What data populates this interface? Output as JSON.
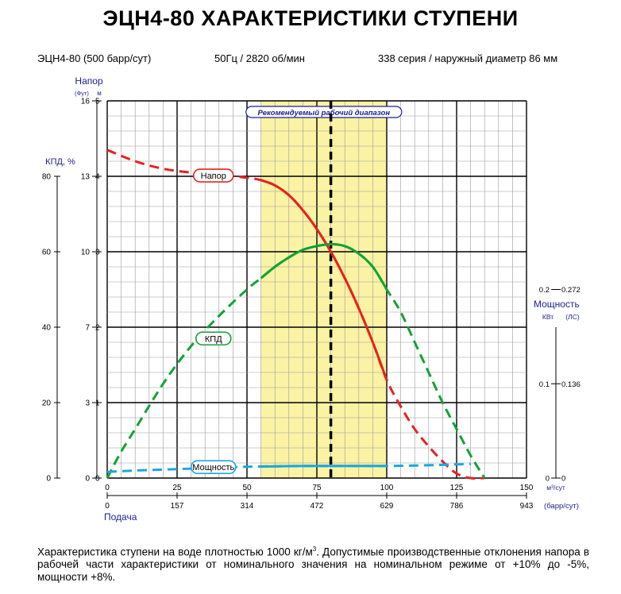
{
  "header": {
    "title": "ЭЦН4-80 ХАРАКТЕРИСТИКИ СТУПЕНИ",
    "model": "ЭЦН4-80 (500 барр/сут)",
    "speed": "50Гц   /   2820 об/мин",
    "series": "338 серия  /  наружный диаметр 86 мм"
  },
  "footnote": {
    "line1_a": "Характеристика ступени на воде плотностью 1000 кг/м",
    "line1_sup": "3",
    "line1_b": ". Допустимые производственные отклонения напора в рабочей части характеристики от номинального значения на номинальном режиме от +10% до -5%, мощности +8%."
  },
  "chart_data": {
    "type": "line",
    "title": "",
    "colors": {
      "head": "#e8201e",
      "efficiency": "#10a335",
      "power": "#1ba7de",
      "band": "#fbf3a4",
      "label_text": "#1b1f93"
    },
    "recommended_range": {
      "label": "Рекомендуемый рабочий диапазон",
      "x": [
        55,
        100
      ]
    },
    "bep_x": 80,
    "x_axis": {
      "label": "Подача",
      "units_primary": "м³/сут",
      "units_secondary": "(барр/сут)",
      "range": [
        0,
        150
      ],
      "ticks": [
        0,
        25,
        50,
        75,
        100,
        125,
        150
      ],
      "secondary_ticks": [
        "0",
        "157",
        "314",
        "472",
        "629",
        "786",
        "943"
      ]
    },
    "y_head": {
      "label": "Напор",
      "unit_ft": "(Фут)",
      "unit_m": "м",
      "range": [
        0,
        5
      ],
      "ticks_m": [
        0,
        1,
        2,
        3,
        4,
        5
      ],
      "ticks_ft": [
        "0",
        "3",
        "7",
        "10",
        "13",
        "16"
      ]
    },
    "y_eff": {
      "label": "КПД, %",
      "range": [
        0,
        100
      ],
      "ticks": [
        0,
        20,
        40,
        60,
        80
      ]
    },
    "y_power": {
      "label": "Мощность",
      "unit_kw": "КВт",
      "unit_hp": "(ЛС)",
      "range": [
        0,
        0.4
      ],
      "ticks_kw": [
        "0",
        "0.1",
        "0.2"
      ],
      "ticks_hp": [
        "0",
        "0.136",
        "0.272"
      ]
    },
    "series": [
      {
        "name": "Напор",
        "axis": "head",
        "x": [
          0,
          10,
          20,
          30,
          40,
          50,
          55,
          60,
          65,
          70,
          75,
          80,
          85,
          90,
          95,
          100,
          105,
          110,
          115,
          120,
          125,
          130,
          135
        ],
        "y": [
          4.35,
          4.2,
          4.1,
          4.05,
          4.02,
          3.98,
          3.95,
          3.88,
          3.75,
          3.55,
          3.3,
          3.0,
          2.65,
          2.25,
          1.8,
          1.3,
          0.95,
          0.65,
          0.42,
          0.22,
          0.06,
          0.0,
          0.0
        ],
        "solid_range": [
          55,
          100
        ]
      },
      {
        "name": "КПД",
        "axis": "efficiency",
        "x": [
          0,
          5,
          10,
          20,
          30,
          40,
          50,
          55,
          60,
          65,
          70,
          75,
          80,
          85,
          90,
          95,
          100,
          105,
          110,
          115,
          120,
          125,
          130,
          135
        ],
        "y": [
          0,
          7,
          13,
          25,
          35,
          43,
          50,
          53,
          56,
          58.5,
          60.5,
          61.5,
          62,
          61.5,
          59.5,
          56,
          50,
          44,
          36,
          28,
          20,
          13,
          6,
          0
        ],
        "solid_range": [
          55,
          100
        ]
      },
      {
        "name": "Мощность",
        "axis": "power",
        "x": [
          0,
          10,
          20,
          30,
          40,
          50,
          60,
          70,
          80,
          90,
          100,
          110,
          120,
          125,
          130
        ],
        "y": [
          0.0065,
          0.008,
          0.009,
          0.01,
          0.011,
          0.012,
          0.0125,
          0.0128,
          0.0128,
          0.0128,
          0.0128,
          0.0133,
          0.014,
          0.0145,
          0.015
        ],
        "solid_range": [
          55,
          100
        ]
      }
    ]
  }
}
